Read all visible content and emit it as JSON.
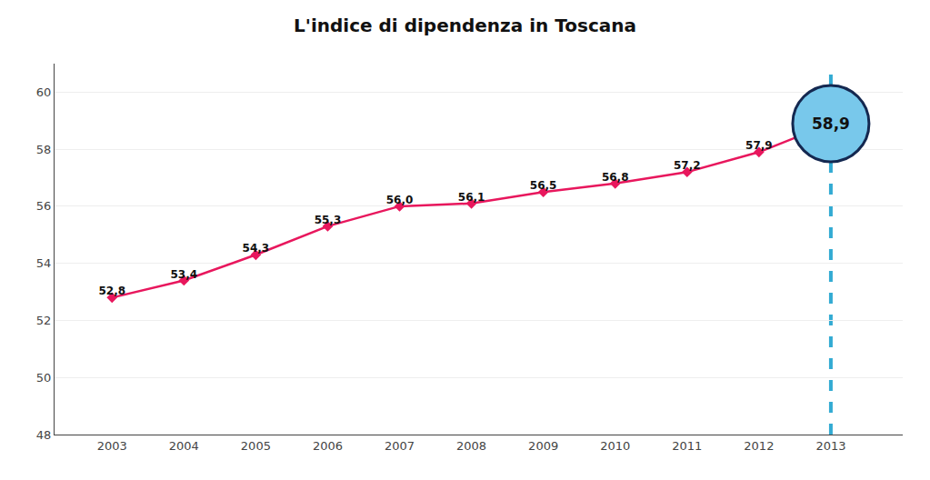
{
  "chart_data": {
    "type": "line",
    "title": "L'indice di dipendenza in Toscana",
    "x": [
      2003,
      2004,
      2005,
      2006,
      2007,
      2008,
      2009,
      2010,
      2011,
      2012,
      2013
    ],
    "values": [
      52.8,
      53.4,
      54.3,
      55.3,
      56.0,
      56.1,
      56.5,
      56.8,
      57.2,
      57.9,
      58.9
    ],
    "value_labels": [
      "52,8",
      "53,4",
      "54,3",
      "55,3",
      "56,0",
      "56,1",
      "56,5",
      "56,8",
      "57,2",
      "57,9",
      "58,9"
    ],
    "data_labels": true,
    "color": "#E8175D",
    "marker": "diamond",
    "xlim": [
      2002.2,
      2014.0
    ],
    "xticks": [
      2003,
      2004,
      2005,
      2006,
      2007,
      2008,
      2009,
      2010,
      2011,
      2012,
      2013
    ],
    "ylim": [
      48,
      61
    ],
    "yticks": [
      48,
      50,
      52,
      54,
      56,
      58,
      60
    ],
    "grid": "y"
  }
}
